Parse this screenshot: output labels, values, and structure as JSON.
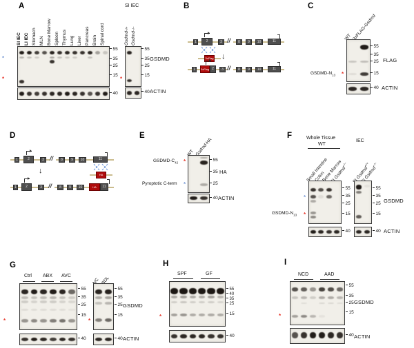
{
  "marks": {
    "star": "*"
  },
  "panels": {
    "A": {
      "label": "A",
      "lanes": [
        "SI IEC",
        "LI IEC",
        "Stomach",
        "MLN",
        "Bone Marrow",
        "Spleen",
        "Thymus",
        "Lung",
        "Liver",
        "Pancreas",
        "Brain",
        "Spinal cord"
      ],
      "mw": [
        "55",
        "35",
        "25",
        "15"
      ],
      "mw_actin": "40",
      "gsdmd_label": "GSDMD",
      "actin_label": "ACTIN",
      "sub_title": "SI IEC",
      "sub_lanes": [
        {
          "gene": "Gsdmd",
          "sup": "+/+"
        },
        {
          "gene": "Gsdmd",
          "sup": "−/−"
        }
      ]
    },
    "B": {
      "label": "B",
      "exons": [
        "1",
        "2",
        "3",
        "8",
        "9",
        "10",
        "11"
      ],
      "tag": "3xFlag",
      "down_arrow": "↓",
      "break_mark": "//"
    },
    "C": {
      "label": "C",
      "lane_wt": "WT",
      "lane_tg": {
        "pre": "3xFLAG-",
        "gene": "Gsdmd"
      },
      "mw": [
        "55",
        "35",
        "25",
        "15"
      ],
      "mw_actin": "40",
      "flag_label": "FLAG",
      "actin_label": "ACTIN",
      "n13_base": "GSDMD-N",
      "n13_sub": "13"
    },
    "D": {
      "label": "D",
      "exons": [
        "1",
        "2",
        "3",
        "8",
        "9",
        "10",
        "11"
      ],
      "tag": "HA",
      "down_arrow": "↓",
      "break_mark": "//"
    },
    "E": {
      "label": "E",
      "lane_wt": "WT",
      "lane_tg": {
        "gene": "Gsdmd",
        "post": "-HA"
      },
      "mw": [
        "55",
        "35",
        "25"
      ],
      "mw_actin": "40",
      "ha_label": "HA",
      "actin_label": "ACTIN",
      "c42_base": "GSDMD-C",
      "c42_sub": "42",
      "cterm_label": "Pyroptotic C-term"
    },
    "F": {
      "label": "F",
      "whole_tissue": "Whole Tissue",
      "wt": "WT",
      "iec": "IEC",
      "lanes": [
        "Small Intestine",
        "Colon",
        "Bone Marrow"
      ],
      "lane_ko": {
        "pre": "SI ",
        "gene": "Gsdmd",
        "sup": "−/−"
      },
      "lane_iec_wt": {
        "pre": "SI ",
        "gene": "Gsdmd",
        "sup": "+/+"
      },
      "lane_iec_ko": {
        "pre": "SI ",
        "gene": "Gsdmd",
        "sup": "−/−"
      },
      "mw": [
        "55",
        "35",
        "25",
        "15"
      ],
      "mw_actin": "40",
      "gsdmd_label": "GSDMD",
      "actin_label": "ACTIN",
      "n13_base": "GSDMD-N",
      "n13_sub": "13"
    },
    "G": {
      "label": "G",
      "groups": [
        "Ctrl",
        "ABX",
        "AVC"
      ],
      "groups2": [
        "NC",
        "BDL"
      ],
      "mw": [
        "55",
        "35",
        "25",
        "15"
      ],
      "mw_actin": "40",
      "gsdmd_label": "GSDMD",
      "actin_label": "ACTIN"
    },
    "H": {
      "label": "H",
      "groups": [
        "SPF",
        "GF"
      ],
      "mw_cluster": [
        "55",
        "40",
        "35",
        "25"
      ],
      "mw_low": "15",
      "mw_actin": "40"
    },
    "I": {
      "label": "I",
      "groups": [
        "NCD",
        "AAD"
      ],
      "mw": [
        "55",
        "35",
        "25",
        "15"
      ],
      "mw_actin": "40",
      "gsdmd_label": "GSDMD",
      "actin_label": "ACTIN"
    }
  },
  "blots": {
    "a_main": {
      "lanes": 12,
      "bands": [
        {
          "l": "all",
          "y": 0.1,
          "h": 0.1,
          "i": [
            0.95,
            0.95,
            0.8,
            0.7,
            0.92,
            0.85,
            0.9,
            0.85,
            0.85,
            0.9,
            0.35,
            0.18
          ]
        },
        {
          "l": "all",
          "y": 0.24,
          "h": 0.06,
          "i": [
            0.25,
            0.2,
            0.15,
            0,
            0.3,
            0.2,
            0.15,
            0.15,
            0,
            0.2,
            0,
            0
          ]
        },
        {
          "l": 4,
          "y": 0.33,
          "i": 0.85,
          "h": 0.09
        },
        {
          "l": 0,
          "y": 0.85,
          "i": 0.85,
          "h": 0.08
        }
      ]
    },
    "a_main_actin": {
      "lanes": 12,
      "bands": [
        {
          "l": "all",
          "y": 0.32,
          "h": 0.38,
          "i": [
            0.95,
            0.85,
            0.8,
            0.85,
            0.9,
            0.9,
            0.95,
            0.9,
            0.85,
            0.7,
            0.85,
            0.95
          ]
        }
      ]
    },
    "a_sub": {
      "lanes": 2,
      "bands": [
        {
          "l": 0,
          "y": 0.1,
          "i": 0.9,
          "h": 0.09
        },
        {
          "l": 0,
          "y": 0.82,
          "i": 0.85,
          "h": 0.08
        }
      ]
    },
    "a_sub_actin": {
      "lanes": 2,
      "bands": [
        {
          "l": "all",
          "y": 0.3,
          "h": 0.38,
          "i": [
            0.9,
            0.9
          ]
        }
      ]
    },
    "c": {
      "lanes": 2,
      "bands": [
        {
          "l": 1,
          "y": 0.12,
          "i": 0.95,
          "h": 0.11
        },
        {
          "l": "all",
          "y": 0.5,
          "h": 0.05,
          "i": [
            0.18,
            0.22
          ]
        },
        {
          "l": 0,
          "y": 0.8,
          "i": 0.08,
          "h": 0.05
        },
        {
          "l": 1,
          "y": 0.79,
          "i": 0.8,
          "h": 0.08
        }
      ]
    },
    "c_actin": {
      "lanes": 2,
      "bands": [
        {
          "l": "all",
          "y": 0.3,
          "h": 0.38,
          "i": [
            0.9,
            0.9
          ]
        }
      ]
    },
    "e": {
      "lanes": 2,
      "bands": [
        {
          "l": 1,
          "y": 0.03,
          "i": 0.3,
          "h": 0.05
        },
        {
          "l": 1,
          "y": 0.14,
          "i": 0.92,
          "h": 0.1
        },
        {
          "l": 1,
          "y": 0.76,
          "i": 0.3,
          "h": 0.07
        }
      ]
    },
    "e_actin": {
      "lanes": 2,
      "bands": [
        {
          "l": "all",
          "y": 0.28,
          "h": 0.42,
          "i": [
            0.95,
            0.85
          ]
        }
      ]
    },
    "f_wt": {
      "lanes": 4,
      "bands": [
        {
          "l": "all",
          "y": 0.16,
          "h": 0.09,
          "i": [
            0.85,
            0.72,
            0.85,
            0
          ]
        },
        {
          "l": "all",
          "y": 0.33,
          "h": 0.08,
          "i": [
            0.7,
            0.08,
            0.6,
            0
          ]
        },
        {
          "l": 0,
          "y": 0.45,
          "i": 0.3,
          "h": 0.06
        },
        {
          "l": 0,
          "y": 0.72,
          "i": 0.4,
          "h": 0.06
        },
        {
          "l": 0,
          "y": 0.82,
          "i": 0.45,
          "h": 0.07
        }
      ]
    },
    "f_wt_actin": {
      "lanes": 4,
      "bands": [
        {
          "l": "all",
          "y": 0.3,
          "h": 0.4,
          "i": [
            0.95,
            0.9,
            0.85,
            0.9
          ]
        }
      ]
    },
    "f_iec": {
      "lanes": 2,
      "bands": [
        {
          "l": 0,
          "y": 0.09,
          "i": 0.95,
          "h": 0.1
        },
        {
          "l": 0,
          "y": 0.23,
          "i": 0.5,
          "h": 0.07
        },
        {
          "l": 1,
          "y": 0.09,
          "i": 0.06,
          "h": 0.06
        },
        {
          "l": 0,
          "y": 0.8,
          "i": 0.65,
          "h": 0.08
        }
      ]
    },
    "f_iec_actin": {
      "lanes": 2,
      "bands": [
        {
          "l": "all",
          "y": 0.3,
          "h": 0.4,
          "i": [
            0.9,
            0.9
          ]
        }
      ]
    },
    "g_left": {
      "lanes": 6,
      "bands": [
        {
          "l": "all",
          "y": 0.12,
          "h": 0.1,
          "i": [
            0.9,
            0.95,
            0.9,
            0.95,
            0.9,
            0.6
          ]
        },
        {
          "l": "all",
          "y": 0.27,
          "h": 0.06,
          "i": [
            0.22,
            0.2,
            0.22,
            0.25,
            0.2,
            0.15
          ]
        },
        {
          "l": "all",
          "y": 0.37,
          "h": 0.05,
          "i": [
            0.15,
            0.12,
            0.15,
            0.15,
            0.12,
            0.1
          ]
        },
        {
          "l": "all",
          "y": 0.55,
          "h": 0.04,
          "i": [
            0.08,
            0.08,
            0.08,
            0.08,
            0.08,
            0.06
          ]
        },
        {
          "l": "all",
          "y": 0.78,
          "h": 0.07,
          "i": [
            0.4,
            0.45,
            0.4,
            0.5,
            0.55,
            0.4
          ]
        }
      ]
    },
    "g_left_actin": {
      "lanes": 6,
      "bands": [
        {
          "l": "all",
          "y": 0.3,
          "h": 0.36,
          "i": [
            0.85,
            0.95,
            0.9,
            0.8,
            0.9,
            0.85
          ]
        }
      ]
    },
    "g_right": {
      "lanes": 2,
      "bands": [
        {
          "l": "all",
          "y": 0.12,
          "h": 0.1,
          "i": [
            0.9,
            0.92
          ]
        },
        {
          "l": "all",
          "y": 0.28,
          "h": 0.06,
          "i": [
            0.3,
            0.35
          ]
        },
        {
          "l": "all",
          "y": 0.4,
          "h": 0.05,
          "i": [
            0.2,
            0.25
          ]
        },
        {
          "l": "all",
          "y": 0.75,
          "h": 0.08,
          "i": [
            0.5,
            0.6
          ]
        }
      ]
    },
    "g_right_actin": {
      "lanes": 2,
      "bands": [
        {
          "l": "all",
          "y": 0.3,
          "h": 0.36,
          "i": [
            0.9,
            0.9
          ]
        }
      ]
    },
    "h": {
      "lanes": 6,
      "bands": [
        {
          "l": "all",
          "y": 0.14,
          "h": 0.14,
          "w": 1.15,
          "i": [
            0.97,
            0.97,
            0.97,
            0.97,
            0.97,
            0.97
          ]
        },
        {
          "l": "all",
          "y": 0.32,
          "h": 0.06,
          "i": [
            0.3,
            0.35,
            0.3,
            0.3,
            0.35,
            0.25
          ]
        },
        {
          "l": "all",
          "y": 0.44,
          "h": 0.05,
          "i": [
            0.15,
            0.18,
            0.15,
            0.15,
            0.15,
            0.12
          ]
        },
        {
          "l": "all",
          "y": 0.72,
          "h": 0.06,
          "i": [
            0.35,
            0.4,
            0.3,
            0.3,
            0.3,
            0.3
          ]
        }
      ]
    },
    "h_actin": {
      "lanes": 6,
      "bands": [
        {
          "l": "all",
          "y": 0.3,
          "h": 0.36,
          "i": [
            0.85,
            0.9,
            0.9,
            0.9,
            0.85,
            0.85
          ]
        }
      ]
    },
    "i": {
      "lanes": 6,
      "bands": [
        {
          "l": "all",
          "y": 0.13,
          "h": 0.09,
          "i": [
            0.7,
            0.65,
            0.4,
            0.78,
            0.72,
            0.6
          ]
        },
        {
          "l": "all",
          "y": 0.34,
          "h": 0.06,
          "i": [
            0.18,
            0.25,
            0.15,
            0.3,
            0.3,
            0.25
          ]
        },
        {
          "l": "all",
          "y": 0.48,
          "h": 0.04,
          "i": [
            0,
            0.08,
            0,
            0.1,
            0.1,
            0.08
          ]
        },
        {
          "l": "all",
          "y": 0.78,
          "h": 0.06,
          "i": [
            0.35,
            0.45,
            0.25,
            0.05,
            0,
            0
          ]
        }
      ]
    },
    "i_actin": {
      "lanes": 6,
      "bands": [
        {
          "l": "all",
          "y": 0.26,
          "h": 0.42,
          "i": [
            0.7,
            0.85,
            0.95,
            0.95,
            0.9,
            0.85
          ]
        }
      ]
    }
  }
}
